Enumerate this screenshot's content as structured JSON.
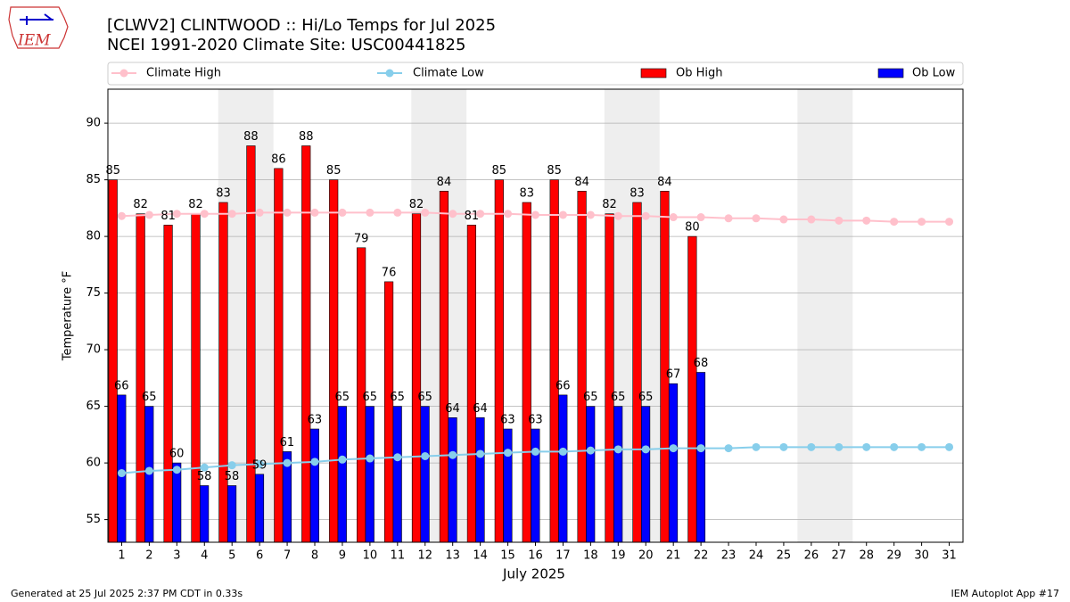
{
  "header": {
    "logo": "IEM"
  },
  "chart_data": {
    "type": "bar",
    "title": "[CLWV2] CLINTWOOD :: Hi/Lo Temps for Jul 2025",
    "subtitle": "NCEI 1991-2020 Climate Site: USC00441825",
    "x_label": "July 2025",
    "y_label": "Temperature °F",
    "categories": [
      "1",
      "2",
      "3",
      "4",
      "5",
      "6",
      "7",
      "8",
      "9",
      "10",
      "11",
      "12",
      "13",
      "14",
      "15",
      "16",
      "17",
      "18",
      "19",
      "20",
      "21",
      "22",
      "23",
      "24",
      "25",
      "26",
      "27",
      "28",
      "29",
      "30",
      "31"
    ],
    "ylim": [
      53,
      93
    ],
    "yticks": [
      55,
      60,
      65,
      70,
      75,
      80,
      85,
      90
    ],
    "grid": true,
    "legend": "top",
    "series": [
      {
        "name": "Climate High",
        "type": "line",
        "color": "#ffc0cb",
        "values": [
          81.8,
          81.9,
          82.0,
          82.0,
          82.0,
          82.1,
          82.1,
          82.1,
          82.1,
          82.1,
          82.1,
          82.1,
          82.0,
          82.0,
          82.0,
          81.9,
          81.9,
          81.9,
          81.8,
          81.8,
          81.7,
          81.7,
          81.6,
          81.6,
          81.5,
          81.5,
          81.4,
          81.4,
          81.3,
          81.3,
          81.3
        ]
      },
      {
        "name": "Climate Low",
        "type": "line",
        "color": "#87ceeb",
        "values": [
          59.1,
          59.3,
          59.4,
          59.6,
          59.8,
          59.9,
          60.0,
          60.1,
          60.3,
          60.4,
          60.5,
          60.6,
          60.7,
          60.8,
          60.9,
          61.0,
          61.0,
          61.1,
          61.2,
          61.2,
          61.3,
          61.3,
          61.3,
          61.4,
          61.4,
          61.4,
          61.4,
          61.4,
          61.4,
          61.4,
          61.4
        ]
      },
      {
        "name": "Ob High",
        "type": "bar",
        "color": "#ff0000",
        "values": [
          85,
          82,
          81,
          82,
          83,
          88,
          86,
          88,
          85,
          79,
          76,
          82,
          84,
          81,
          85,
          83,
          85,
          84,
          82,
          83,
          84,
          80,
          null,
          null,
          null,
          null,
          null,
          null,
          null,
          null,
          null
        ]
      },
      {
        "name": "Ob Low",
        "type": "bar",
        "color": "#0000ff",
        "values": [
          66,
          65,
          60,
          58,
          58,
          59,
          61,
          63,
          65,
          65,
          65,
          65,
          64,
          64,
          63,
          63,
          66,
          65,
          65,
          65,
          67,
          68,
          null,
          null,
          null,
          null,
          null,
          null,
          null,
          null,
          null
        ]
      }
    ]
  },
  "footer": {
    "left": "Generated at 25 Jul 2025 2:37 PM CDT in 0.33s",
    "right": "IEM Autoplot App #17"
  }
}
